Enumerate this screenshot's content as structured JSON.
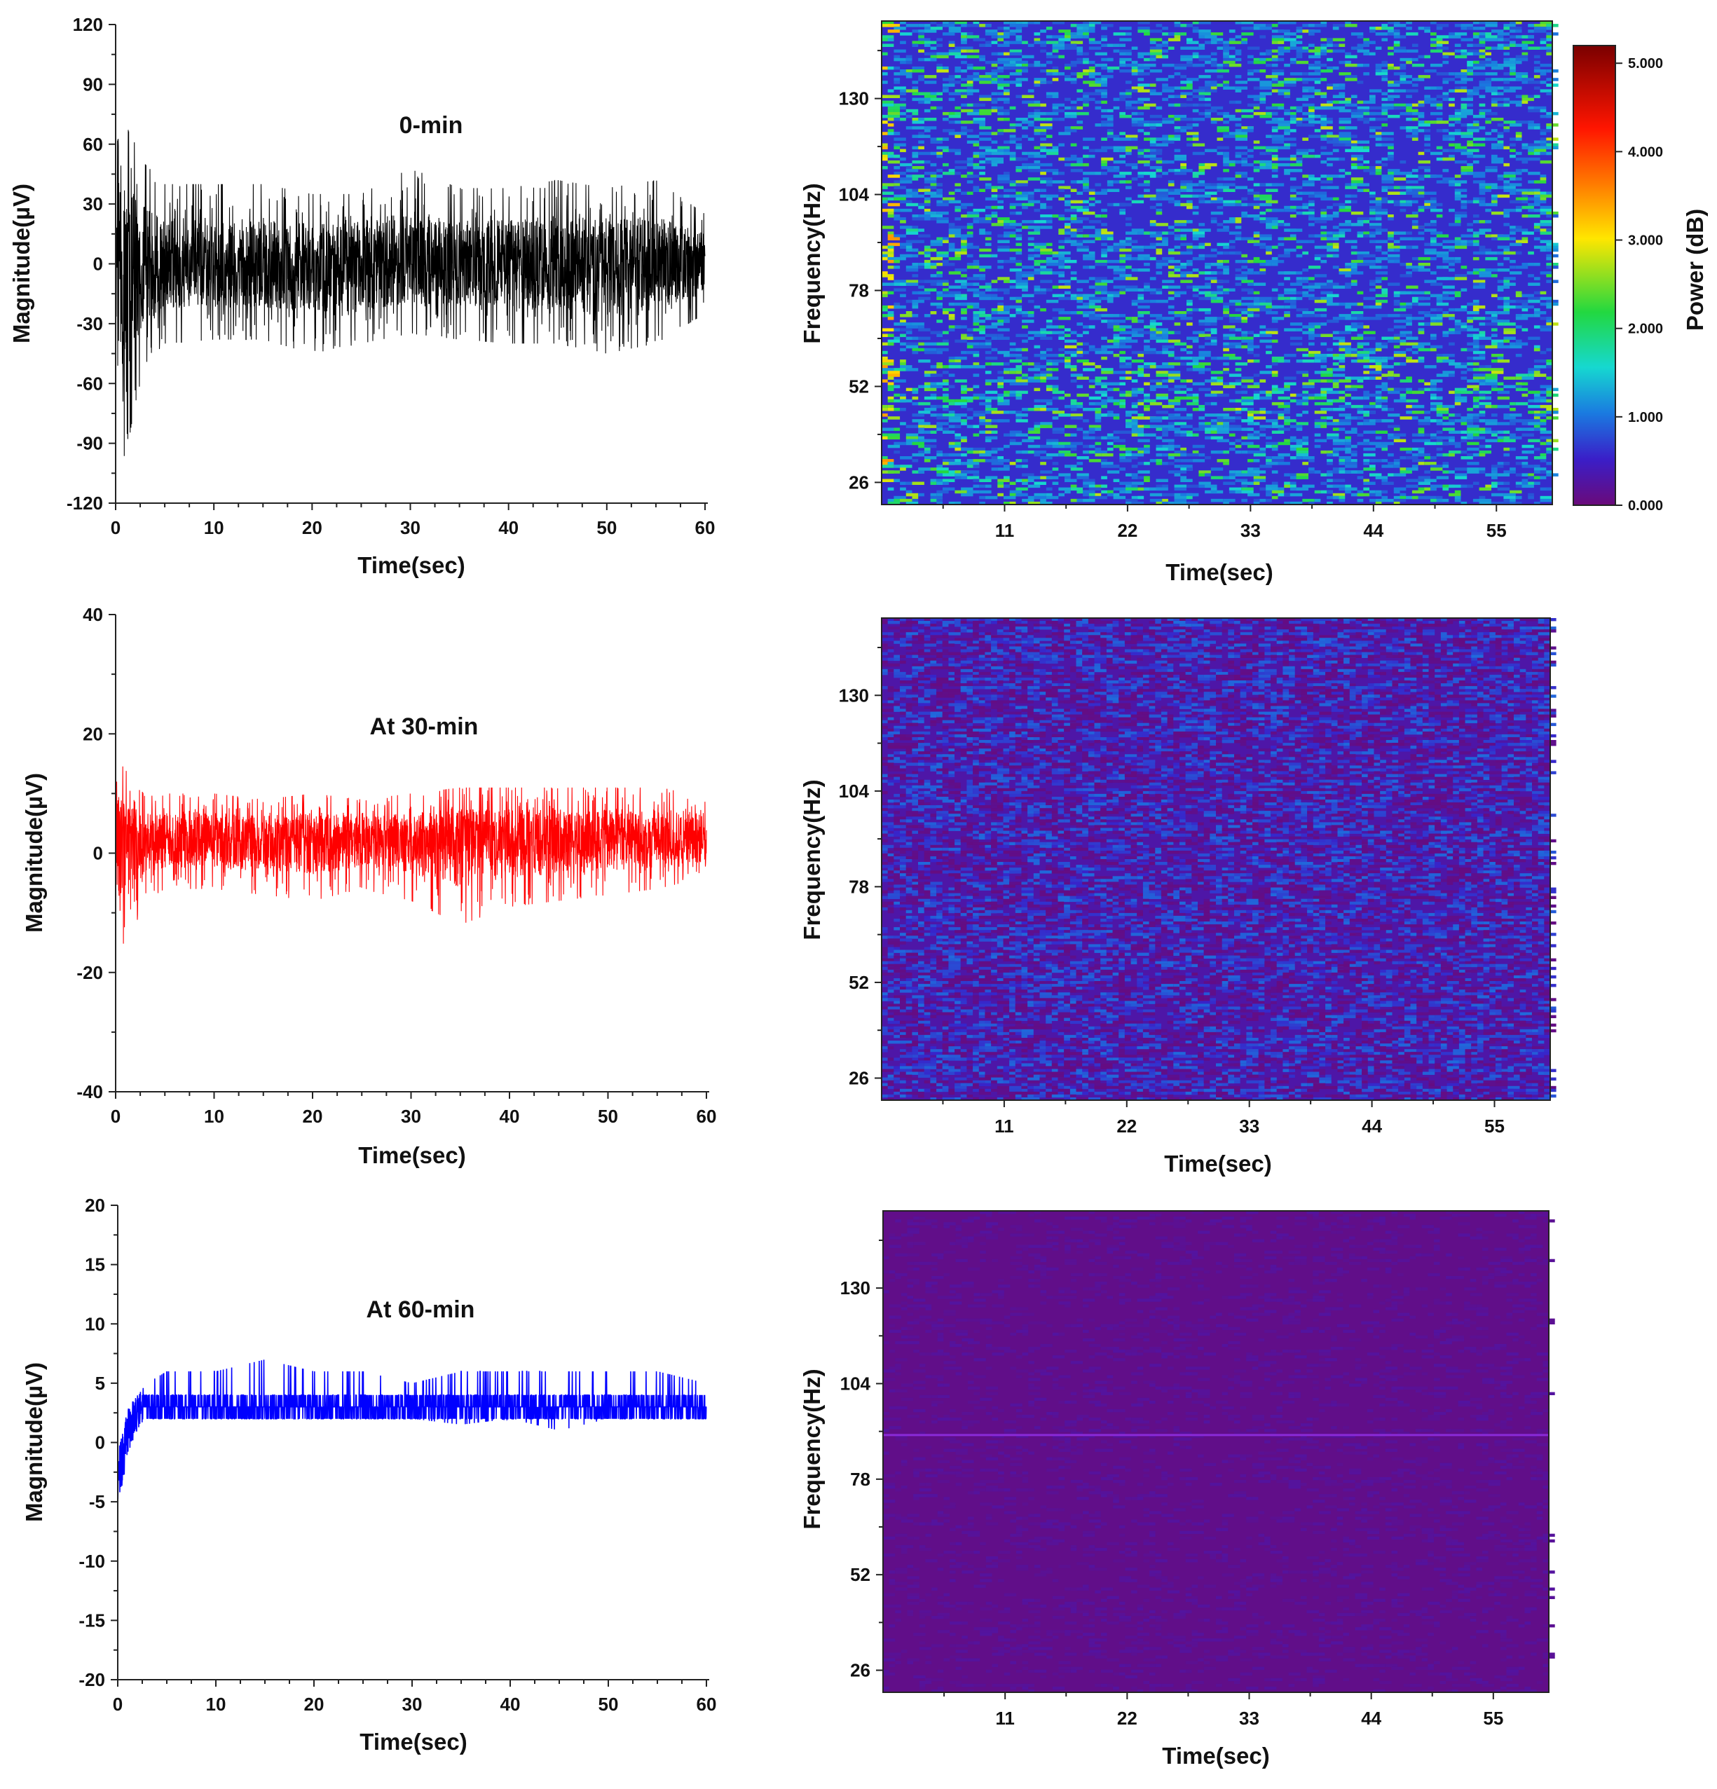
{
  "chart_data": [
    {
      "type": "line",
      "title": "0-min",
      "xlabel": "Time(sec)",
      "ylabel": "Magnitude(µV)",
      "xlim": [
        0,
        60
      ],
      "ylim": [
        -120,
        120
      ],
      "xticks": [
        "0",
        "10",
        "20",
        "30",
        "40",
        "50",
        "60"
      ],
      "yticks": [
        "120",
        "90",
        "60",
        "30",
        "0",
        "-30",
        "-60",
        "-90",
        "-120"
      ],
      "color": "#000000",
      "series": [
        {
          "x": [
            0,
            1,
            2,
            3,
            5,
            10,
            15,
            20,
            25,
            30,
            35,
            40,
            45,
            50,
            55,
            60
          ],
          "upper_envelope": [
            60,
            70,
            60,
            50,
            40,
            40,
            40,
            35,
            35,
            48,
            38,
            38,
            42,
            38,
            42,
            25
          ],
          "lower_envelope": [
            -90,
            -98,
            -70,
            -50,
            -40,
            -38,
            -38,
            -45,
            -40,
            -35,
            -38,
            -40,
            -40,
            -45,
            -40,
            -25
          ],
          "mean": 0
        }
      ]
    },
    {
      "type": "heatmap",
      "xlabel": "Time(sec)",
      "ylabel": "Frequency(Hz)",
      "xticks": [
        "11",
        "22",
        "33",
        "44",
        "55"
      ],
      "yticks": [
        "130",
        "104",
        "78",
        "52",
        "26"
      ],
      "xlim": [
        0,
        60
      ],
      "ylim": [
        20,
        151
      ],
      "colorbar": {
        "label": "Power (dB)",
        "ticks": [
          "5.000",
          "4.000",
          "3.000",
          "2.000",
          "1.000",
          "0.000"
        ],
        "range": [
          0,
          5.2
        ],
        "colors": [
          "#6a0a7a",
          "#3a1ec8",
          "#1a7ae0",
          "#16d8d0",
          "#22d840",
          "#ffe600",
          "#ff7a00",
          "#ff1500",
          "#7a0000"
        ]
      },
      "dominant_power_db": 0.6,
      "peak_power_db": 3.5,
      "notable_band_hz": 52
    },
    {
      "type": "line",
      "title": "At 30-min",
      "xlabel": "Time(sec)",
      "ylabel": "Magnitude(µV)",
      "xlim": [
        0,
        60
      ],
      "ylim": [
        -40,
        40
      ],
      "xticks": [
        "0",
        "10",
        "20",
        "30",
        "40",
        "50",
        "60"
      ],
      "yticks": [
        "40",
        "20",
        "0",
        "-20",
        "-40"
      ],
      "color": "#ff0000",
      "series": [
        {
          "x": [
            0,
            1,
            2,
            3,
            5,
            10,
            15,
            20,
            25,
            30,
            35,
            40,
            45,
            50,
            55,
            60
          ],
          "upper_envelope": [
            16,
            14,
            11,
            10,
            10,
            10,
            9,
            10,
            9,
            10,
            11,
            11,
            11,
            11,
            11,
            10
          ],
          "lower_envelope": [
            -12,
            -16,
            -12,
            -8,
            -6,
            -6,
            -7,
            -8,
            -6,
            -8,
            -12,
            -9,
            -8,
            -7,
            -6,
            -4
          ],
          "mean": 2.5
        }
      ]
    },
    {
      "type": "heatmap",
      "xlabel": "Time(sec)",
      "ylabel": "Frequency(Hz)",
      "xticks": [
        "11",
        "22",
        "33",
        "44",
        "55"
      ],
      "yticks": [
        "130",
        "104",
        "78",
        "52",
        "26"
      ],
      "xlim": [
        0,
        60
      ],
      "ylim": [
        20,
        151
      ],
      "dominant_power_db": 0.3,
      "peak_power_db": 1.0
    },
    {
      "type": "line",
      "title": "At 60-min",
      "xlabel": "Time(sec)",
      "ylabel": "Magnitude(µV)",
      "xlim": [
        0,
        60
      ],
      "ylim": [
        -20,
        20
      ],
      "xticks": [
        "0",
        "10",
        "20",
        "30",
        "40",
        "50",
        "60"
      ],
      "yticks": [
        "20",
        "15",
        "10",
        "5",
        "0",
        "-5",
        "-10",
        "-15",
        "-20"
      ],
      "color": "#0000ff",
      "series": [
        {
          "x": [
            0,
            0.5,
            1,
            2,
            3,
            5,
            10,
            15,
            20,
            25,
            30,
            35,
            40,
            45,
            50,
            55,
            60
          ],
          "upper_envelope": [
            -1,
            1,
            3,
            4,
            5,
            6,
            6,
            7,
            6,
            6,
            5,
            6,
            6,
            6,
            6,
            6,
            5
          ],
          "lower_envelope": [
            -5,
            -4,
            -1,
            1,
            2,
            2,
            2,
            2,
            2,
            2,
            2,
            1.5,
            2,
            1,
            2,
            2,
            2
          ],
          "mean": 3
        }
      ]
    },
    {
      "type": "heatmap",
      "xlabel": "Time(sec)",
      "ylabel": "Frequency(Hz)",
      "xticks": [
        "11",
        "22",
        "33",
        "44",
        "55"
      ],
      "yticks": [
        "130",
        "104",
        "78",
        "52",
        "26"
      ],
      "xlim": [
        0,
        60
      ],
      "ylim": [
        20,
        151
      ],
      "dominant_power_db": 0.1,
      "peak_power_db": 0.3,
      "line_band_hz": 90
    }
  ]
}
